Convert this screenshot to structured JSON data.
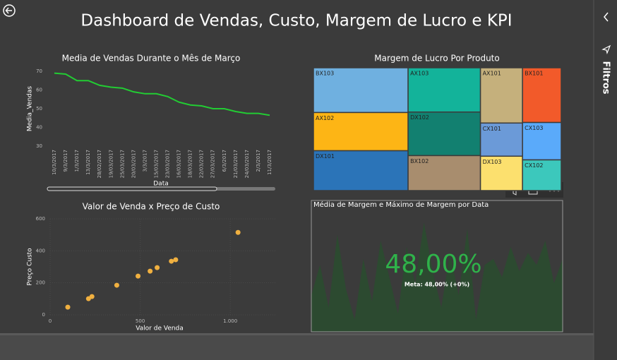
{
  "page": {
    "title": "Dashboard de Vendas, Custo, Margem de Lucro e KPI",
    "filters": "Filtros"
  },
  "chart_data": [
    {
      "type": "line",
      "title": "Media de Vendas Durante o Mês de Março",
      "x_label": "Data",
      "y_label": "Media_Vendas",
      "categories": [
        "10/3/2017",
        "9/3/2017",
        "1/3/2017",
        "13/3/2017",
        "28/02/2017",
        "19/03/2017",
        "25/03/2017",
        "20/03/2017",
        "3/3/2017",
        "15/03/2017",
        "23/03/2017",
        "16/03/2017",
        "18/03/2017",
        "22/03/2017",
        "27/03/2017",
        "6/3/2017",
        "21/03/2017",
        "24/03/2017",
        "2/3/2017",
        "11/3/2017"
      ],
      "values": [
        69,
        68.5,
        65,
        65,
        62.5,
        61.5,
        61,
        59,
        58,
        58,
        56.5,
        53.5,
        52,
        51.5,
        50,
        50,
        48.5,
        47.5,
        47.5,
        46.5
      ],
      "color": "#22cc33",
      "ylim": [
        30,
        70
      ],
      "yticks": [
        30,
        40,
        50,
        60,
        70
      ]
    },
    {
      "type": "treemap",
      "title": "Margem de Lucro Por Produto",
      "categories": [
        "BX103",
        "AX102",
        "DX101",
        "AX103",
        "DX102",
        "BX102",
        "AX101",
        "CX101",
        "DX103",
        "BX101",
        "CX103",
        "CX102"
      ],
      "values": [
        82,
        70,
        73,
        62,
        61,
        49,
        45,
        27,
        28,
        41,
        28,
        23
      ],
      "colors": [
        "#6fb0e0",
        "#fdb515",
        "#2b74b8",
        "#13b39a",
        "#128070",
        "#a88d6e",
        "#c5b07c",
        "#6b9ad8",
        "#fce06e",
        "#f25a2a",
        "#5aaafa",
        "#3cc8bc"
      ]
    },
    {
      "type": "scatter",
      "title": "Valor de Venda x Preço de Custo",
      "x_label": "Valor de Venda",
      "y_label": "Preço Custo",
      "x": [
        98,
        213,
        232,
        370,
        488,
        555,
        594,
        673,
        697,
        1043
      ],
      "values": [
        48,
        101,
        114,
        185,
        242,
        273,
        295,
        335,
        344,
        515
      ],
      "color": "#f0b040",
      "xlim": [
        0,
        1250
      ],
      "xticks": [
        0,
        500,
        {
          "value": 1000,
          "label": "1.000"
        }
      ],
      "ylim": [
        0,
        600
      ],
      "yticks": [
        0,
        200,
        400,
        600
      ],
      "grid": true
    },
    {
      "type": "kpi",
      "title": "Média de Margem e Máximo de Margem por Data",
      "value": 48,
      "value_label": "48,00%",
      "goal_label": "Meta: 48,00% (+0%)",
      "trend": [
        30,
        55,
        20,
        80,
        35,
        10,
        60,
        25,
        75,
        45,
        15,
        70,
        40,
        90,
        50,
        20,
        65,
        30,
        85,
        10,
        55,
        60,
        45,
        70,
        50,
        65,
        55,
        75,
        40,
        60
      ],
      "trend_ylim": [
        0,
        100
      ],
      "trend_color": "#2c4a30",
      "value_color": "#2fb24a"
    }
  ]
}
